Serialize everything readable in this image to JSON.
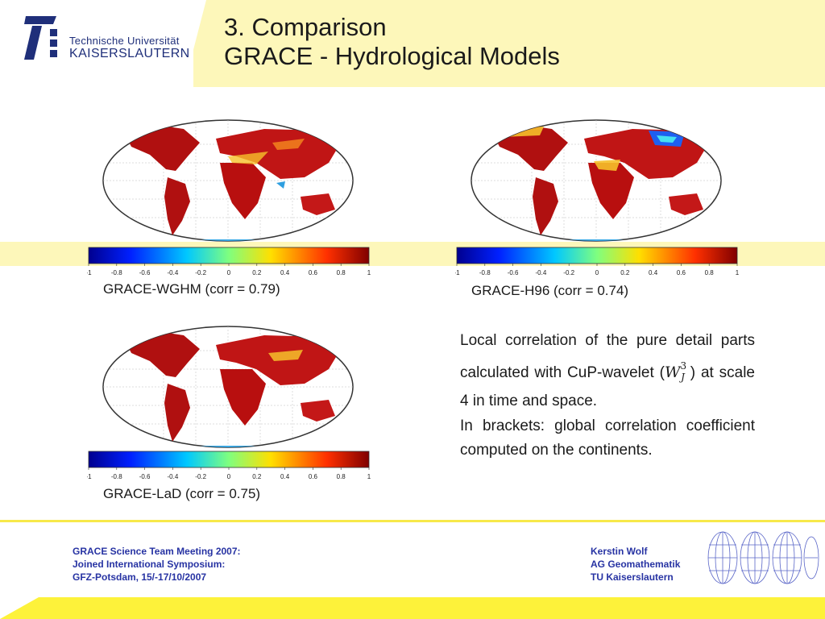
{
  "header": {
    "title_line1": "3. Comparison",
    "title_line2": "GRACE - Hydrological Models",
    "logo_line1": "Technische Universität",
    "logo_line2": "KAISERSLAUTERN"
  },
  "colorbar_ticks": [
    "-1",
    "-0.8",
    "-0.6",
    "-0.4",
    "-0.2",
    "0",
    "0.2",
    "0.4",
    "0.6",
    "0.8",
    "1"
  ],
  "maps": [
    {
      "caption": "GRACE-WGHM (corr = 0.79)"
    },
    {
      "caption": "GRACE-H96 (corr = 0.74)"
    },
    {
      "caption": "GRACE-LaD (corr = 0.75)"
    }
  ],
  "description": {
    "p1_before": "Local correlation of the pure detail parts calculated with CuP-wavelet (",
    "wavelet_symbol": "W",
    "wavelet_sup": "3",
    "wavelet_sub": "J",
    "p1_after": " ) at scale 4 in time and space.",
    "p2": "In brackets: global correlation coefficient computed on the continents."
  },
  "footer": {
    "left_line1": "GRACE Science Team Meeting 2007:",
    "left_line2": "Joined International Symposium:",
    "left_line3": "GFZ-Potsdam, 15/-17/10/2007",
    "right_line1": "Kerstin Wolf",
    "right_line2": "AG Geomathematik",
    "right_line3": "TU Kaiserslautern"
  },
  "colors": {
    "brand_blue": "#1f2f7a",
    "footer_blue": "#2733a3",
    "header_yellow": "#fdf7ba",
    "footer_yellow": "#fdf23a",
    "correlation_high": "#b30000",
    "correlation_low": "#0000b3"
  }
}
